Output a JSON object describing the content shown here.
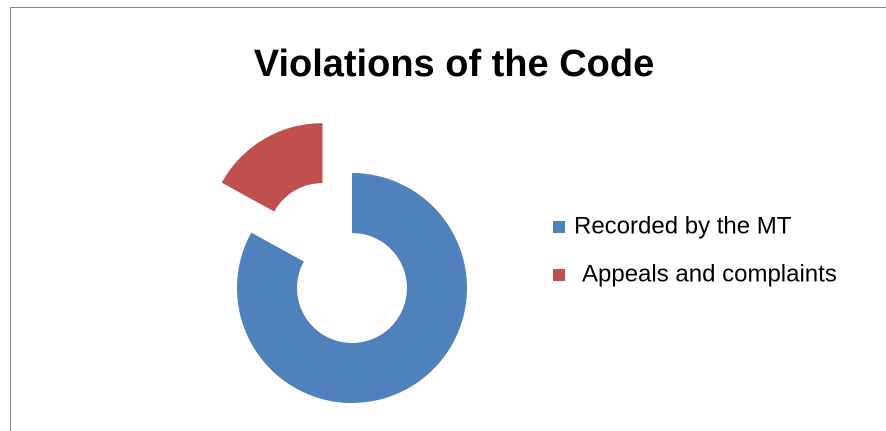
{
  "chart_data": {
    "type": "donut",
    "title": "Violations of the Code",
    "categories": [
      "Recorded by the MT",
      "Appeals and complaints"
    ],
    "values": [
      83,
      17
    ],
    "colors": [
      "#4f81bd",
      "#c0504d"
    ],
    "exploded": [
      false,
      true
    ],
    "legend": "right"
  }
}
